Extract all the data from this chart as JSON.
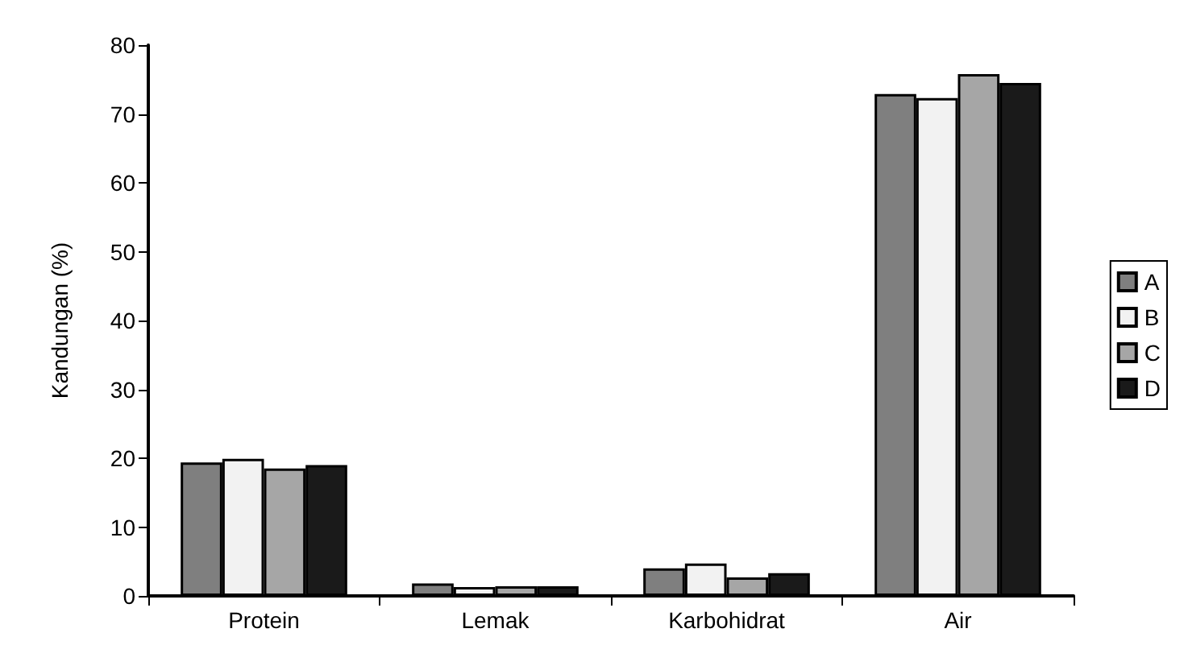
{
  "chart_data": {
    "type": "bar",
    "ylabel": "Kandungan (%)",
    "categories": [
      "Protein",
      "Lemak",
      "Karbohidrat",
      "Air"
    ],
    "series": [
      {
        "name": "A",
        "color": "#7f7f7f",
        "values": [
          19.4,
          1.8,
          4.0,
          72.9
        ]
      },
      {
        "name": "B",
        "color": "#f2f2f2",
        "values": [
          19.9,
          1.3,
          4.7,
          72.3
        ]
      },
      {
        "name": "C",
        "color": "#a6a6a6",
        "values": [
          18.5,
          1.4,
          2.7,
          75.8
        ]
      },
      {
        "name": "D",
        "color": "#1a1a1a",
        "values": [
          19.0,
          1.4,
          3.3,
          74.5
        ]
      }
    ],
    "ylim": [
      0,
      80
    ],
    "yticks": [
      0,
      10,
      20,
      30,
      40,
      50,
      60,
      70,
      80
    ],
    "grid": false,
    "legend": "right"
  }
}
